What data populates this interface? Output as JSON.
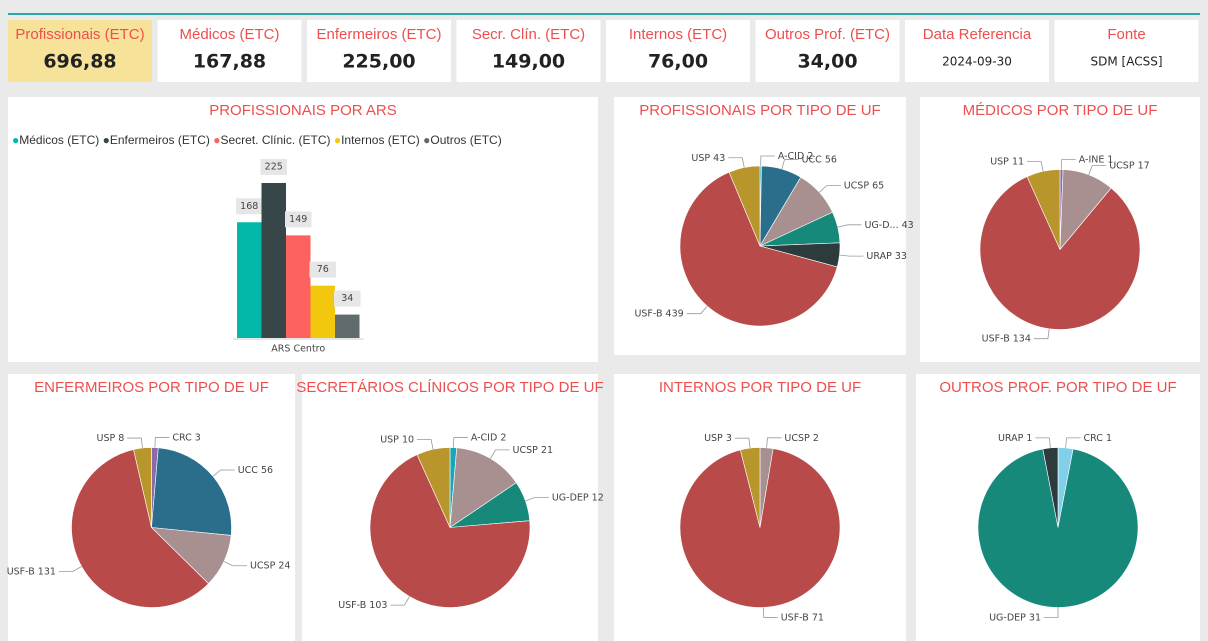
{
  "cards": [
    {
      "title": "Profissionais (ETC)",
      "value": "696,88"
    },
    {
      "title": "Médicos (ETC)",
      "value": "167,88"
    },
    {
      "title": "Enfermeiros (ETC)",
      "value": "225,00"
    },
    {
      "title": "Secr. Clín. (ETC)",
      "value": "149,00"
    },
    {
      "title": "Internos (ETC)",
      "value": "76,00"
    },
    {
      "title": "Outros Prof. (ETC)",
      "value": "34,00"
    },
    {
      "title": "Data Referencia",
      "value": "2024-09-30"
    },
    {
      "title": "Fonte",
      "value": "SDM [ACSS]"
    }
  ],
  "chart_data": [
    {
      "type": "bar",
      "title": "PROFISSIONAIS POR ARS",
      "categories": [
        "ARS Centro"
      ],
      "series": [
        {
          "name": "Médicos (ETC)",
          "color": "#01b8aa",
          "values": [
            168
          ]
        },
        {
          "name": "Enfermeiros (ETC)",
          "color": "#374649",
          "values": [
            225
          ]
        },
        {
          "name": "Secret. Clínic. (ETC)",
          "color": "#fd625e",
          "values": [
            149
          ]
        },
        {
          "name": "Internos (ETC)",
          "color": "#f2c80f",
          "values": [
            76
          ]
        },
        {
          "name": "Outros (ETC)",
          "color": "#5f6b6d",
          "values": [
            34
          ]
        }
      ]
    },
    {
      "type": "pie",
      "title": "PROFISSIONAIS POR TIPO DE UF",
      "categories": [
        "A-CID",
        "UCC",
        "UCSP",
        "UG-D...",
        "URAP",
        "USF-B",
        "USP"
      ],
      "values": [
        2,
        56,
        65,
        43,
        33,
        439,
        43
      ],
      "colors": [
        "#19a7b8",
        "#2a6e8c",
        "#a89090",
        "#17897b",
        "#2d3b3d",
        "#b84a4a",
        "#b8962b"
      ]
    },
    {
      "type": "pie",
      "title": "MÉDICOS POR TIPO DE UF",
      "categories": [
        "A-INE",
        "UCSP",
        "USF-B",
        "USP"
      ],
      "values": [
        1,
        17,
        134,
        11
      ],
      "colors": [
        "#8a6aa8",
        "#a89090",
        "#b84a4a",
        "#b8962b"
      ]
    },
    {
      "type": "pie",
      "title": "ENFERMEIROS POR TIPO DE UF",
      "categories": [
        "CRC",
        "UCC",
        "UCSP",
        "USF-B",
        "USP"
      ],
      "values": [
        3,
        56,
        24,
        131,
        8
      ],
      "colors": [
        "#8a6aa8",
        "#2a6e8c",
        "#a89090",
        "#b84a4a",
        "#b8962b"
      ]
    },
    {
      "type": "pie",
      "title": "SECRETÁRIOS CLÍNICOS POR TIPO DE UF",
      "categories": [
        "A-CID",
        "UCSP",
        "UG-DEP",
        "USF-B",
        "USP"
      ],
      "values": [
        2,
        21,
        12,
        103,
        10
      ],
      "colors": [
        "#19a7b8",
        "#a89090",
        "#17897b",
        "#b84a4a",
        "#b8962b"
      ]
    },
    {
      "type": "pie",
      "title": "INTERNOS POR TIPO DE UF",
      "categories": [
        "UCSP",
        "USF-B",
        "USP"
      ],
      "values": [
        2,
        71,
        3
      ],
      "colors": [
        "#a89090",
        "#b84a4a",
        "#b8962b"
      ]
    },
    {
      "type": "pie",
      "title": "OUTROS PROF. POR TIPO DE UF",
      "categories": [
        "CRC",
        "UG-DEP",
        "URAP"
      ],
      "values": [
        1,
        31,
        1
      ],
      "colors": [
        "#7fd0e8",
        "#17897b",
        "#2d3b3d"
      ]
    }
  ]
}
